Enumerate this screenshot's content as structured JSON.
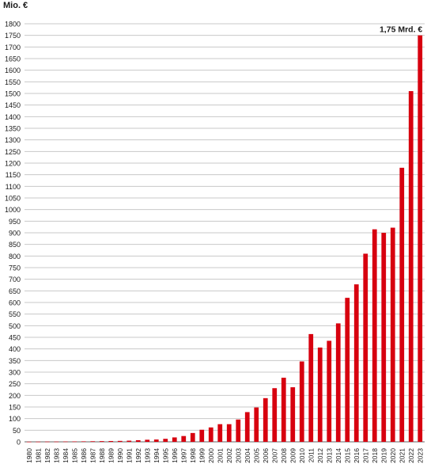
{
  "chart_data": {
    "type": "bar",
    "ylabel": "Mio. €",
    "ylim": [
      0,
      1800
    ],
    "ytick_step": 50,
    "grid": true,
    "bar_color": "#d7000f",
    "grid_color": "#c8c8c8",
    "annotation": {
      "text": "1,75 Mrd. €",
      "category": "2023"
    },
    "categories": [
      "1980",
      "1981",
      "1982",
      "1983",
      "1984",
      "1985",
      "1986",
      "1987",
      "1988",
      "1989",
      "1990",
      "1991",
      "1992",
      "1993",
      "1994",
      "1995",
      "1996",
      "1997",
      "1998",
      "1999",
      "2000",
      "2001",
      "2002",
      "2003",
      "2004",
      "2005",
      "2006",
      "2007",
      "2008",
      "2009",
      "2010",
      "2011",
      "2012",
      "2013",
      "2014",
      "2015",
      "2016",
      "2017",
      "2018",
      "2019",
      "2020",
      "2021",
      "2022",
      "2023"
    ],
    "values": [
      0.5,
      0.7,
      1,
      1,
      1.3,
      1.6,
      2,
      2.5,
      3,
      3.5,
      4,
      5,
      7,
      9,
      10,
      13,
      19,
      25,
      38,
      52,
      62,
      76,
      76,
      96,
      128,
      148,
      188,
      231,
      276,
      235,
      346,
      464,
      406,
      435,
      510,
      620,
      678,
      810,
      915,
      900,
      922,
      1180,
      1510,
      1750
    ]
  }
}
